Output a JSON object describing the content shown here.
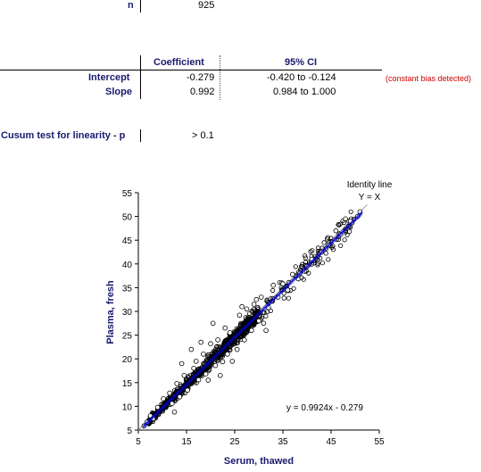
{
  "stats": {
    "n_label": "n",
    "n_value": "925",
    "col_coefficient": "Coefficient",
    "col_ci": "95% CI",
    "intercept_label": "Intercept",
    "intercept_coef": "-0.279",
    "intercept_ci": "-0.420  to -0.124",
    "intercept_note": "(constant bias detected)",
    "slope_label": "Slope",
    "slope_coef": "0.992",
    "slope_ci": "0.984  to 1.000",
    "cusum_label": "Cusum test for linearity - p",
    "cusum_value": "> 0.1"
  },
  "chart_data": {
    "type": "scatter",
    "title": "",
    "xlabel": "Serum, thawed",
    "ylabel": "Plasma, fresh",
    "xlim": [
      5,
      55
    ],
    "ylim": [
      5,
      55
    ],
    "xticks": [
      "5",
      "15",
      "25",
      "35",
      "45",
      "55"
    ],
    "yticks": [
      "5",
      "10",
      "15",
      "20",
      "25",
      "30",
      "35",
      "40",
      "45",
      "50",
      "55"
    ],
    "grid": false,
    "identity_label_1": "Identity line",
    "identity_label_2": "Y = X",
    "equation": "y = 0.9924x - 0.279",
    "fit": {
      "slope": 0.9924,
      "intercept": -0.279,
      "x_range": [
        6,
        51.5
      ]
    },
    "identity": {
      "x_range": [
        5,
        52.5
      ]
    },
    "outliers": [
      [
        6.2,
        5.9
      ],
      [
        6.8,
        6.7
      ],
      [
        7.5,
        8.0
      ],
      [
        8.1,
        7.4
      ],
      [
        9.0,
        9.8
      ],
      [
        10.2,
        11.6
      ],
      [
        11.5,
        12.8
      ],
      [
        12.0,
        10.6
      ],
      [
        13.0,
        14.8
      ],
      [
        13.6,
        12.0
      ],
      [
        14.5,
        16.5
      ],
      [
        15.2,
        13.4
      ],
      [
        16.5,
        18.0
      ],
      [
        17.0,
        19.5
      ],
      [
        17.5,
        15.6
      ],
      [
        18.5,
        21.0
      ],
      [
        19.0,
        16.8
      ],
      [
        20.0,
        23.2
      ],
      [
        21.0,
        18.6
      ],
      [
        21.5,
        24.0
      ],
      [
        22.5,
        19.4
      ],
      [
        23.0,
        26.5
      ],
      [
        23.5,
        21.0
      ],
      [
        24.0,
        25.5
      ],
      [
        25.5,
        22.0
      ],
      [
        26.0,
        29.2
      ],
      [
        27.0,
        24.0
      ],
      [
        27.5,
        30.5
      ],
      [
        28.5,
        26.0
      ],
      [
        29.0,
        31.5
      ],
      [
        30.0,
        28.0
      ],
      [
        30.5,
        33.0
      ],
      [
        31.0,
        27.5
      ],
      [
        31.5,
        26.0
      ],
      [
        32.0,
        30.8
      ],
      [
        33.0,
        35.5
      ],
      [
        34.0,
        33.0
      ],
      [
        35.0,
        35.8
      ],
      [
        36.0,
        34.5
      ],
      [
        37.0,
        37.8
      ],
      [
        38.5,
        38.0
      ],
      [
        40.0,
        39.5
      ],
      [
        41.0,
        41.0
      ],
      [
        43.0,
        42.5
      ],
      [
        44.5,
        44.0
      ],
      [
        46.0,
        47.0
      ],
      [
        47.0,
        46.2
      ],
      [
        48.0,
        49.5
      ],
      [
        49.0,
        49.0
      ],
      [
        50.5,
        50.0
      ],
      [
        51.0,
        51.0
      ],
      [
        20.5,
        27.5
      ],
      [
        18.0,
        23.5
      ],
      [
        22.0,
        16.5
      ],
      [
        26.5,
        31.0
      ],
      [
        29.5,
        32.5
      ],
      [
        16.0,
        22.0
      ],
      [
        19.5,
        15.5
      ],
      [
        24.5,
        19.5
      ],
      [
        14.0,
        19.0
      ],
      [
        12.5,
        8.8
      ]
    ],
    "n_points": 925
  },
  "colors": {
    "label_text": "#1a1a6e",
    "fit_line": "#0000cc",
    "identity_line": "#9a9a9a",
    "note_red": "#cc0000"
  }
}
